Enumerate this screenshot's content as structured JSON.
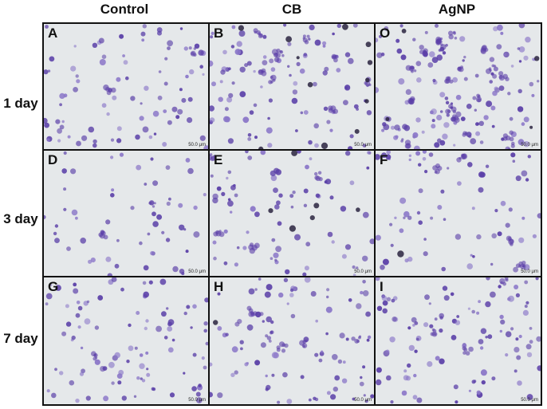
{
  "columns": [
    "Control",
    "CB",
    "AgNP"
  ],
  "rows": [
    "1 day",
    "3 day",
    "7 day"
  ],
  "panels": [
    {
      "letter": "A",
      "scale": "50.0 μm",
      "cells": 85,
      "dark": 0,
      "clumps": 2,
      "seed": 11
    },
    {
      "letter": "B",
      "scale": "50.0 μm",
      "cells": 100,
      "dark": 12,
      "clumps": 8,
      "seed": 23
    },
    {
      "letter": "O",
      "scale": "50.0 μm",
      "cells": 130,
      "dark": 4,
      "clumps": 18,
      "seed": 37
    },
    {
      "letter": "D",
      "scale": "50.0 μm",
      "cells": 55,
      "dark": 0,
      "clumps": 2,
      "seed": 41
    },
    {
      "letter": "E",
      "scale": "50.0 μm",
      "cells": 75,
      "dark": 6,
      "clumps": 4,
      "seed": 53
    },
    {
      "letter": "F",
      "scale": "50.0 μm",
      "cells": 70,
      "dark": 1,
      "clumps": 4,
      "seed": 67
    },
    {
      "letter": "G",
      "scale": "50.0 μm",
      "cells": 95,
      "dark": 0,
      "clumps": 1,
      "seed": 71
    },
    {
      "letter": "H",
      "scale": "50.0 μm",
      "cells": 90,
      "dark": 1,
      "clumps": 5,
      "seed": 83
    },
    {
      "letter": "I",
      "scale": "50.0 μm",
      "cells": 105,
      "dark": 0,
      "clumps": 3,
      "seed": 97
    }
  ],
  "colors": {
    "background": "#e5e8ea",
    "cell": "#5b40a8",
    "cell_light": "#8a76c8",
    "dark": "#2a2340",
    "border": "#111111"
  }
}
